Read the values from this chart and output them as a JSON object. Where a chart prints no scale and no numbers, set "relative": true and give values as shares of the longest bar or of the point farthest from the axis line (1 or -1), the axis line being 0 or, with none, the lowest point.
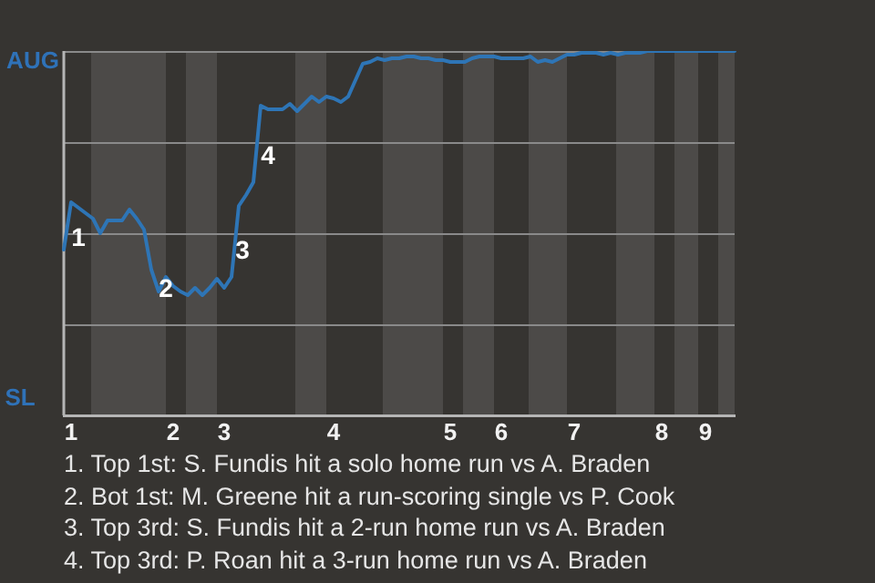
{
  "chart_data": {
    "type": "line",
    "relative": true,
    "marker": "none",
    "line_style": "solid",
    "legend": false,
    "categories": [
      null,
      "1",
      null,
      null,
      null,
      null,
      null,
      null,
      null,
      null,
      null,
      null,
      null,
      null,
      null,
      "2",
      null,
      null,
      null,
      null,
      null,
      null,
      "3",
      null,
      null,
      null,
      null,
      null,
      null,
      null,
      null,
      null,
      null,
      null,
      null,
      null,
      null,
      "4",
      null,
      null,
      null,
      null,
      null,
      null,
      null,
      null,
      null,
      null,
      null,
      null,
      null,
      null,
      null,
      "5",
      null,
      null,
      null,
      null,
      null,
      null,
      "6",
      null,
      null,
      null,
      null,
      null,
      null,
      null,
      null,
      null,
      "7",
      null,
      null,
      null,
      null,
      null,
      null,
      null,
      null,
      null,
      null,
      null,
      "8",
      null,
      null,
      null,
      null,
      null,
      "9",
      null,
      null,
      null,
      null
    ],
    "series": [
      {
        "color": "#2e75b6",
        "values": [
          0.455,
          0.585,
          0.57,
          0.555,
          0.54,
          0.5,
          0.535,
          0.535,
          0.535,
          0.565,
          0.54,
          0.51,
          0.4,
          0.34,
          0.38,
          0.355,
          0.34,
          0.33,
          0.35,
          0.33,
          0.35,
          0.375,
          0.35,
          0.38,
          0.575,
          0.605,
          0.64,
          0.85,
          0.84,
          0.84,
          0.84,
          0.855,
          0.835,
          0.855,
          0.875,
          0.86,
          0.875,
          0.87,
          0.86,
          0.875,
          0.92,
          0.965,
          0.97,
          0.98,
          0.975,
          0.98,
          0.98,
          0.985,
          0.985,
          0.98,
          0.98,
          0.975,
          0.975,
          0.97,
          0.97,
          0.97,
          0.98,
          0.985,
          0.985,
          0.985,
          0.98,
          0.98,
          0.98,
          0.98,
          0.985,
          0.97,
          0.975,
          0.97,
          0.98,
          0.99,
          0.99,
          0.995,
          0.995,
          0.995,
          0.99,
          0.995,
          0.99,
          0.995,
          0.995,
          0.995,
          1,
          1,
          1,
          1,
          1,
          1,
          1,
          1,
          1,
          1,
          1,
          1,
          1
        ]
      }
    ],
    "ref_lines": [
      {
        "axis": "y",
        "value": 0.25,
        "color": "#8a8a8a"
      },
      {
        "axis": "y",
        "value": 0.5,
        "color": "#8a8a8a"
      },
      {
        "axis": "y",
        "value": 0.75,
        "color": "#8a8a8a"
      },
      {
        "axis": "y",
        "value": 1,
        "color": "#8a8a8a"
      }
    ],
    "annotations": [
      "AUG",
      "SL",
      "1",
      "2",
      "3",
      "4",
      "1. Top 1st: S. Fundis hit a solo home run vs A. Braden",
      "2. Bot 1st: M. Greene hit a run-scoring single vs P. Cook",
      "3. Top 3rd: S. Fundis hit a 2-run home run vs A. Braden",
      "4. Top 3rd: P. Roan hit a 3-run home run vs A. Braden"
    ]
  }
}
